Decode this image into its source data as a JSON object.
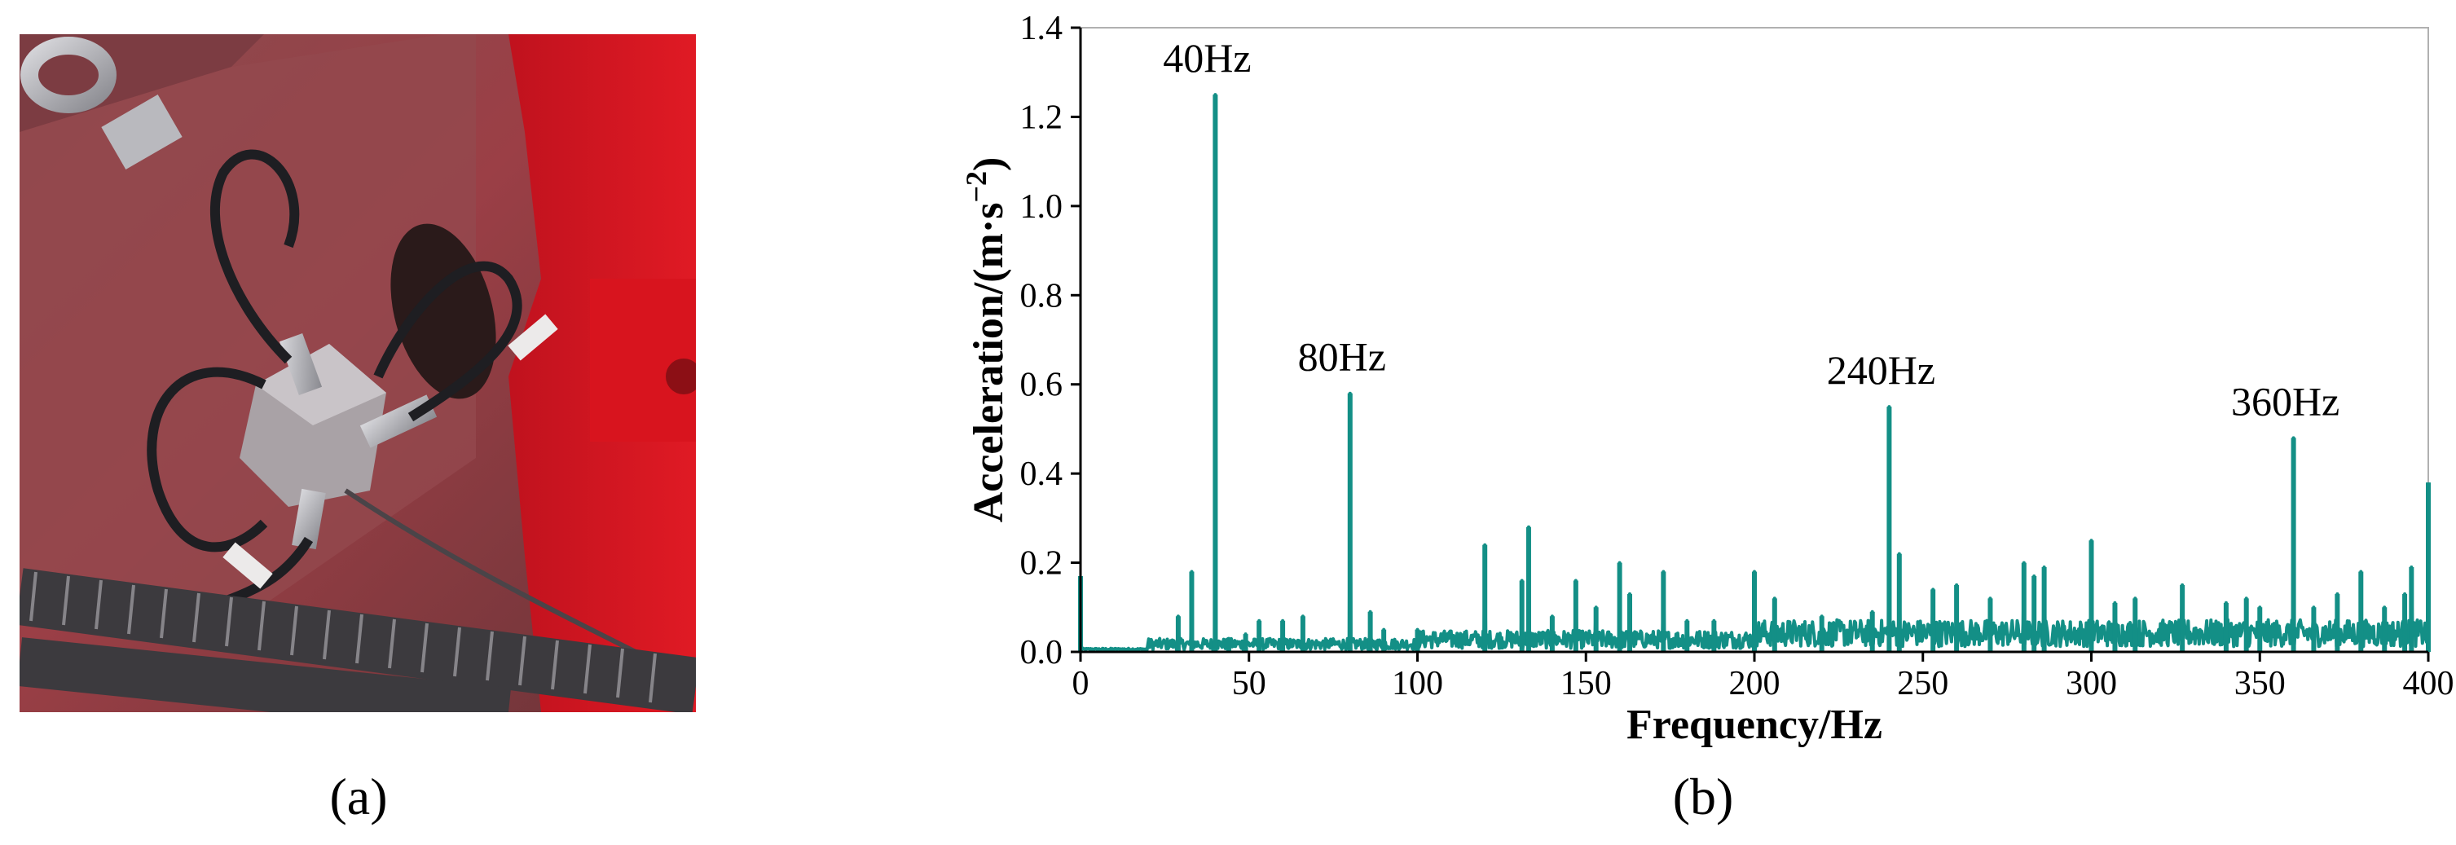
{
  "captions": {
    "a": "(a)",
    "b": "(b)"
  },
  "colors": {
    "series": "#138f86",
    "axis": "#000000",
    "frame": "#b0b0b0"
  },
  "photo": {
    "subject": "triaxial accelerometer mounted on red machine casing with cables",
    "icon": "photo-sensor-icon"
  },
  "chart_data": {
    "type": "line",
    "title": "",
    "xlabel": "Frequency/Hz",
    "ylabel_main": "Acceleration/(m·s",
    "ylabel_sup": "−2",
    "ylabel_end": ")",
    "xlim": [
      0,
      400
    ],
    "ylim": [
      0,
      1.4
    ],
    "xticks": [
      0,
      50,
      100,
      150,
      200,
      250,
      300,
      350,
      400
    ],
    "xtick_labels": [
      "0",
      "50",
      "100",
      "150",
      "200",
      "250",
      "300",
      "350",
      "400"
    ],
    "yticks": [
      0,
      0.2,
      0.4,
      0.6,
      0.8,
      1.0,
      1.2,
      1.4
    ],
    "ytick_labels": [
      "0.0",
      "0.2",
      "0.4",
      "0.6",
      "0.8",
      "1.0",
      "1.2",
      "1.4"
    ],
    "grid": false,
    "series": [
      {
        "color": "#138f86",
        "peaks": [
          [
            0,
            0.17
          ],
          [
            29,
            0.08
          ],
          [
            33,
            0.18
          ],
          [
            40,
            1.25
          ],
          [
            44,
            0.03
          ],
          [
            49,
            0.04
          ],
          [
            53,
            0.07
          ],
          [
            60,
            0.07
          ],
          [
            66,
            0.08
          ],
          [
            80,
            0.58
          ],
          [
            86,
            0.09
          ],
          [
            90,
            0.05
          ],
          [
            100,
            0.05
          ],
          [
            120,
            0.24
          ],
          [
            131,
            0.16
          ],
          [
            133,
            0.28
          ],
          [
            140,
            0.08
          ],
          [
            147,
            0.16
          ],
          [
            153,
            0.1
          ],
          [
            160,
            0.2
          ],
          [
            163,
            0.13
          ],
          [
            173,
            0.18
          ],
          [
            180,
            0.07
          ],
          [
            188,
            0.07
          ],
          [
            200,
            0.18
          ],
          [
            206,
            0.12
          ],
          [
            220,
            0.08
          ],
          [
            235,
            0.09
          ],
          [
            240,
            0.55
          ],
          [
            243,
            0.22
          ],
          [
            253,
            0.14
          ],
          [
            260,
            0.15
          ],
          [
            270,
            0.12
          ],
          [
            280,
            0.2
          ],
          [
            283,
            0.17
          ],
          [
            286,
            0.19
          ],
          [
            300,
            0.25
          ],
          [
            307,
            0.11
          ],
          [
            313,
            0.12
          ],
          [
            327,
            0.15
          ],
          [
            340,
            0.11
          ],
          [
            346,
            0.12
          ],
          [
            350,
            0.1
          ],
          [
            360,
            0.48
          ],
          [
            366,
            0.1
          ],
          [
            373,
            0.13
          ],
          [
            380,
            0.18
          ],
          [
            387,
            0.1
          ],
          [
            393,
            0.13
          ],
          [
            395,
            0.19
          ],
          [
            400,
            0.38
          ]
        ]
      }
    ],
    "annotations": [
      {
        "text": "40Hz",
        "x": 40,
        "y": 1.25
      },
      {
        "text": "80Hz",
        "x": 80,
        "y": 0.58
      },
      {
        "text": "240Hz",
        "x": 240,
        "y": 0.55
      },
      {
        "text": "360Hz",
        "x": 360,
        "y": 0.48
      }
    ]
  }
}
